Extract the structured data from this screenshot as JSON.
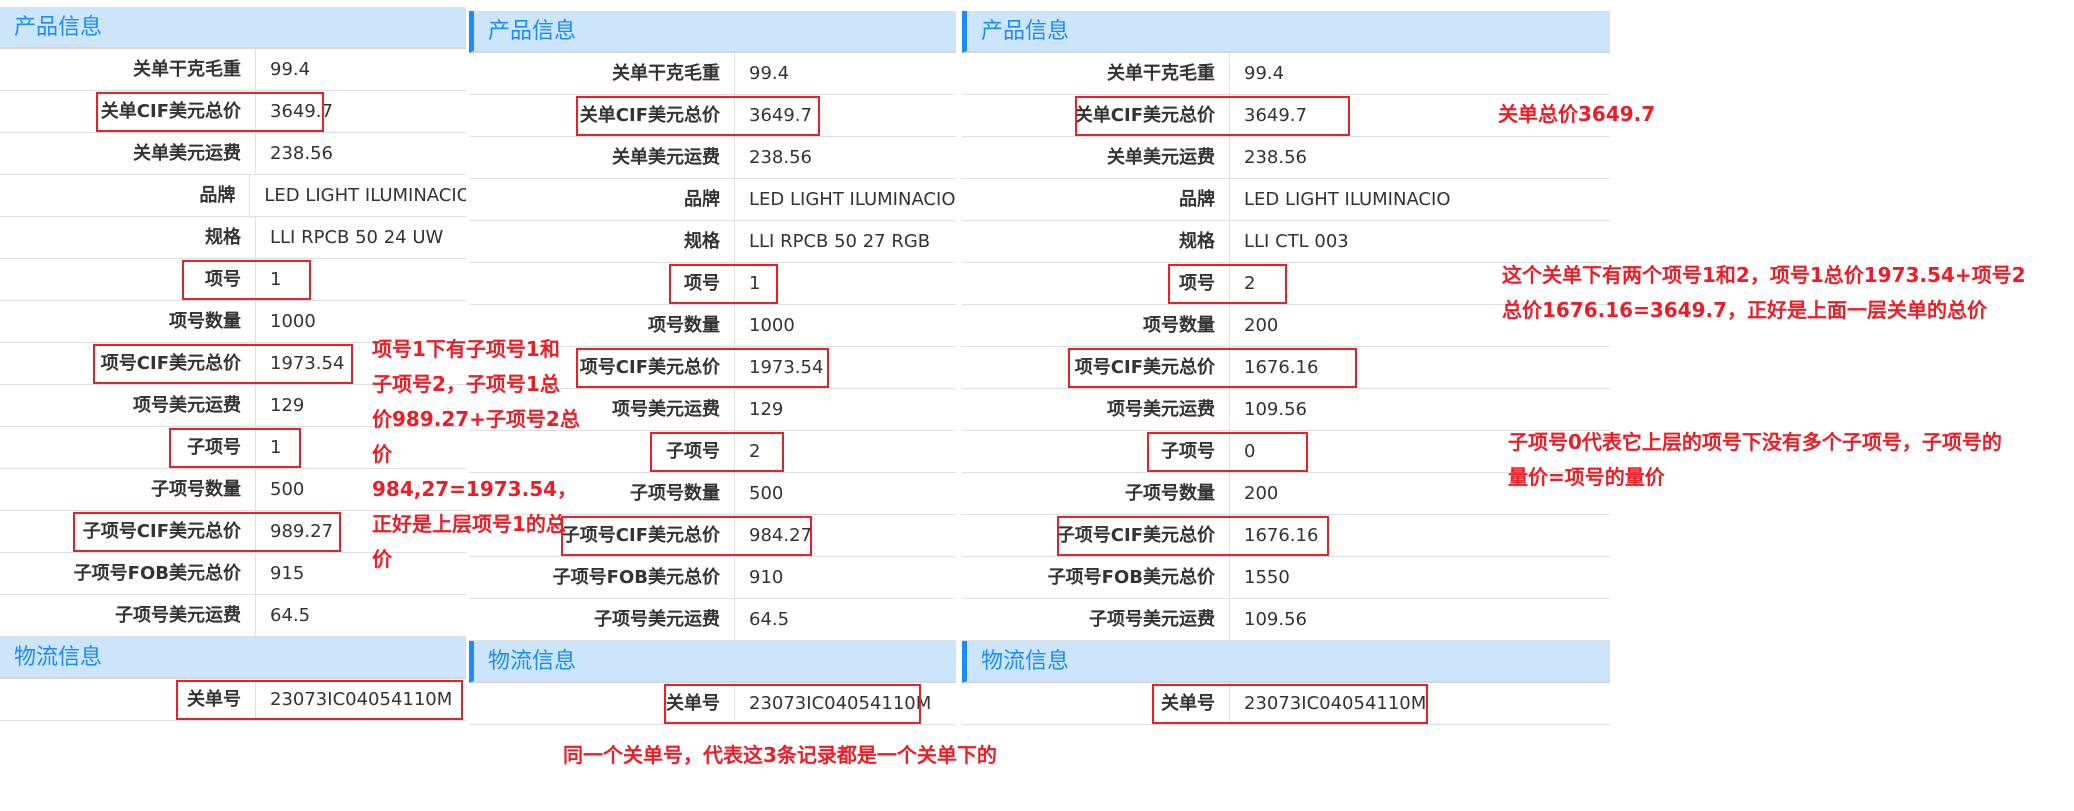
{
  "colors": {
    "header_bg": "#cce5fb",
    "header_text": "#1a8cff",
    "annotation": "#ee1c25",
    "highlight_box": "#e8202a"
  },
  "panels": [
    {
      "product_title": "产品信息",
      "logistics_title": "物流信息",
      "rows": [
        {
          "label": "关单干克毛重",
          "value": "99.4"
        },
        {
          "label": "关单CIF美元总价",
          "value": "3649.7",
          "highlighted": true
        },
        {
          "label": "关单美元运费",
          "value": "238.56"
        },
        {
          "label": "品牌",
          "value": "LED LIGHT ILUMINACIO"
        },
        {
          "label": "规格",
          "value": "LLI RPCB 50 24 UW"
        },
        {
          "label": "项号",
          "value": "1",
          "highlighted": true
        },
        {
          "label": "项号数量",
          "value": "1000"
        },
        {
          "label": "项号CIF美元总价",
          "value": "1973.54",
          "highlighted": true
        },
        {
          "label": "项号美元运费",
          "value": "129"
        },
        {
          "label": "子项号",
          "value": "1",
          "highlighted": true
        },
        {
          "label": "子项号数量",
          "value": "500"
        },
        {
          "label": "子项号CIF美元总价",
          "value": "989.27",
          "highlighted": true
        },
        {
          "label": "子项号FOB美元总价",
          "value": "915"
        },
        {
          "label": "子项号美元运费",
          "value": "64.5"
        }
      ],
      "logistics_rows": [
        {
          "label": "关单号",
          "value": "23073IC04054110M",
          "highlighted": true
        }
      ]
    },
    {
      "product_title": "产品信息",
      "logistics_title": "物流信息",
      "rows": [
        {
          "label": "关单干克毛重",
          "value": "99.4"
        },
        {
          "label": "关单CIF美元总价",
          "value": "3649.7",
          "highlighted": true
        },
        {
          "label": "关单美元运费",
          "value": "238.56"
        },
        {
          "label": "品牌",
          "value": "LED LIGHT ILUMINACIO"
        },
        {
          "label": "规格",
          "value": "LLI RPCB 50 27 RGB"
        },
        {
          "label": "项号",
          "value": "1",
          "highlighted": true
        },
        {
          "label": "项号数量",
          "value": "1000"
        },
        {
          "label": "项号CIF美元总价",
          "value": "1973.54",
          "highlighted": true
        },
        {
          "label": "项号美元运费",
          "value": "129"
        },
        {
          "label": "子项号",
          "value": "2",
          "highlighted": true
        },
        {
          "label": "子项号数量",
          "value": "500"
        },
        {
          "label": "子项号CIF美元总价",
          "value": "984.27",
          "highlighted": true
        },
        {
          "label": "子项号FOB美元总价",
          "value": "910"
        },
        {
          "label": "子项号美元运费",
          "value": "64.5"
        }
      ],
      "logistics_rows": [
        {
          "label": "关单号",
          "value": "23073IC04054110M",
          "highlighted": true
        }
      ]
    },
    {
      "product_title": "产品信息",
      "logistics_title": "物流信息",
      "rows": [
        {
          "label": "关单干克毛重",
          "value": "99.4"
        },
        {
          "label": "关单CIF美元总价",
          "value": "3649.7",
          "highlighted": true
        },
        {
          "label": "关单美元运费",
          "value": "238.56"
        },
        {
          "label": "品牌",
          "value": "LED LIGHT ILUMINACIO"
        },
        {
          "label": "规格",
          "value": "LLI CTL 003"
        },
        {
          "label": "项号",
          "value": "2",
          "highlighted": true
        },
        {
          "label": "项号数量",
          "value": "200"
        },
        {
          "label": "项号CIF美元总价",
          "value": "1676.16",
          "highlighted": true
        },
        {
          "label": "项号美元运费",
          "value": "109.56"
        },
        {
          "label": "子项号",
          "value": "0",
          "highlighted": true
        },
        {
          "label": "子项号数量",
          "value": "200"
        },
        {
          "label": "子项号CIF美元总价",
          "value": "1676.16",
          "highlighted": true
        },
        {
          "label": "子项号FOB美元总价",
          "value": "1550"
        },
        {
          "label": "子项号美元运费",
          "value": "109.56"
        }
      ],
      "logistics_rows": [
        {
          "label": "关单号",
          "value": "23073IC04054110M",
          "highlighted": true
        }
      ]
    }
  ],
  "annotations": {
    "panel1_note": [
      "项号1下有子项号1和",
      "子项号2，子项号1总",
      "价989.27+子项号2总",
      "价984,27=1973.54，",
      "正好是上层项号1的总",
      "价"
    ],
    "total_note": "关单总价3649.7",
    "items_note": [
      "这个关单下有两个项号1和2，项号1总价1973.54+项号2",
      "总价1676.16=3649.7，正好是上面一层关单的总价"
    ],
    "subitem_zero_note": [
      "子项号0代表它上层的项号下没有多个子项号，子项号的",
      "量价=项号的量价"
    ],
    "same_order_note": "同一个关单号，代表这3条记录都是一个关单下的"
  }
}
